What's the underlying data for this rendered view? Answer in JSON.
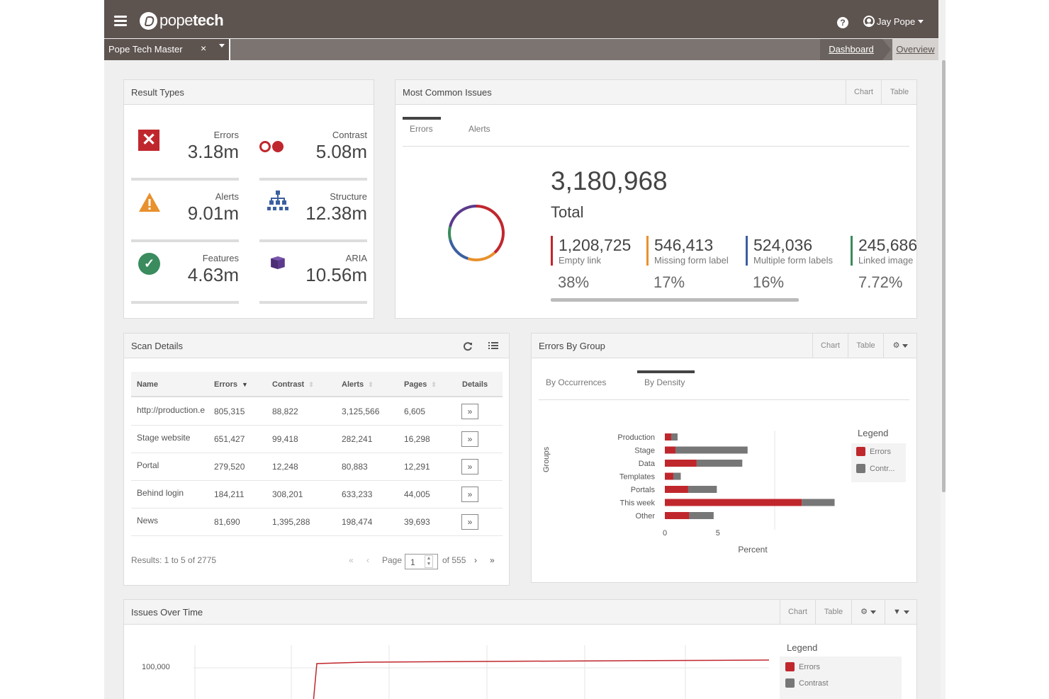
{
  "colors": {
    "brand_dark": "#5d534f",
    "error_red": "#c0272d",
    "contrast_gray": "#777777",
    "alerts_orange": "#e8912d",
    "structure_blue": "#3b5fa1",
    "features_green": "#3a8b5d",
    "aria_purple": "#5b3a8b",
    "linked_green": "#3a8b5d"
  },
  "header": {
    "logo_text": "popetech",
    "help_icon": "question-circle-icon",
    "user_name": "Jay Pope",
    "menu_icon": "hamburger-icon"
  },
  "subbar": {
    "site_name": "Pope Tech Master",
    "clear_glyph": "×",
    "breadcrumb_dashboard": "Dashboard",
    "breadcrumb_overview": "Overview"
  },
  "result_types": {
    "title": "Result Types",
    "items": [
      {
        "label": "Errors",
        "value": "3.18m",
        "icon": "error-x-icon"
      },
      {
        "label": "Contrast",
        "value": "5.08m",
        "icon": "contrast-circles-icon"
      },
      {
        "label": "Alerts",
        "value": "9.01m",
        "icon": "warning-triangle-icon"
      },
      {
        "label": "Structure",
        "value": "12.38m",
        "icon": "sitemap-icon"
      },
      {
        "label": "Features",
        "value": "4.63m",
        "icon": "check-circle-icon"
      },
      {
        "label": "ARIA",
        "value": "10.56m",
        "icon": "cube-icon"
      }
    ]
  },
  "most_common": {
    "title": "Most Common Issues",
    "chart_btn": "Chart",
    "table_btn": "Table",
    "tabs": [
      "Errors",
      "Alerts"
    ],
    "total": "3,180,968",
    "total_label": "Total",
    "items": [
      {
        "value": "1,208,725",
        "label": "Empty link",
        "pct": "38%",
        "color": "#c0272d"
      },
      {
        "value": "546,413",
        "label": "Missing form label",
        "pct": "17%",
        "color": "#e8912d"
      },
      {
        "value": "524,036",
        "label": "Multiple form labels",
        "pct": "16%",
        "color": "#3b5fa1"
      },
      {
        "value": "245,686",
        "label": "Linked image",
        "pct": "7.72%",
        "color": "#3a8b5d"
      }
    ]
  },
  "scan_details": {
    "title": "Scan Details",
    "refresh_icon": "refresh-icon",
    "list_icon": "list-icon",
    "columns": [
      "Name",
      "Errors",
      "Contrast",
      "Alerts",
      "Pages",
      "Details"
    ],
    "rows": [
      {
        "name": "http://production.e",
        "errors": "805,315",
        "contrast": "88,822",
        "alerts": "3,125,566",
        "pages": "6,605"
      },
      {
        "name": "Stage website",
        "errors": "651,427",
        "contrast": "99,418",
        "alerts": "282,241",
        "pages": "16,298"
      },
      {
        "name": "Portal",
        "errors": "279,520",
        "contrast": "12,248",
        "alerts": "80,883",
        "pages": "12,291"
      },
      {
        "name": "Behind login",
        "errors": "184,211",
        "contrast": "308,201",
        "alerts": "633,233",
        "pages": "44,005"
      },
      {
        "name": "News",
        "errors": "81,690",
        "contrast": "1,395,288",
        "alerts": "198,474",
        "pages": "39,693"
      }
    ],
    "details_glyph": "»",
    "results_text": "Results: 1 to 5 of 2775",
    "page_label": "Page",
    "page_value": "1",
    "of_pages": "of 555"
  },
  "errors_by_group": {
    "title": "Errors By Group",
    "chart_btn": "Chart",
    "table_btn": "Table",
    "settings_icon": "gear-icon",
    "tabs": [
      "By Occurrences",
      "By Density"
    ],
    "y_axis_label": "Groups",
    "x_axis_label": "Percent",
    "legend_title": "Legend",
    "legend": [
      "Errors",
      "Contr..."
    ]
  },
  "issues_over_time": {
    "title": "Issues Over Time",
    "chart_btn": "Chart",
    "table_btn": "Table",
    "settings_icon": "gear-icon",
    "filter_icon": "filter-icon",
    "y_tick": "100,000",
    "legend_title": "Legend",
    "legend": [
      "Errors",
      "Contrast"
    ]
  },
  "chart_data": [
    {
      "type": "pie",
      "title": "",
      "categories": [
        "Empty link",
        "Missing form label",
        "Multiple form labels",
        "Linked image",
        "Other"
      ],
      "values": [
        38,
        17,
        16,
        7.72,
        21.28
      ]
    },
    {
      "type": "bar",
      "orientation": "horizontal",
      "stacked": true,
      "title": "",
      "xlabel": "Percent",
      "ylabel": "Groups",
      "categories": [
        "Production",
        "Stage",
        "Data",
        "Templates",
        "Portals",
        "This week",
        "Other"
      ],
      "series": [
        {
          "name": "Errors",
          "values": [
            0.6,
            1.0,
            3.0,
            0.8,
            2.2,
            12.9,
            2.3
          ]
        },
        {
          "name": "Contr...",
          "values": [
            0.6,
            6.8,
            4.3,
            0.7,
            2.7,
            3.1,
            2.3
          ]
        }
      ],
      "xticks": [
        "0",
        "5"
      ],
      "xlim": [
        0,
        16.5
      ],
      "legend": "right"
    },
    {
      "type": "line",
      "title": "",
      "series": [
        {
          "name": "Errors"
        },
        {
          "name": "Contrast"
        }
      ],
      "yticks": [
        "100,000"
      ]
    }
  ]
}
